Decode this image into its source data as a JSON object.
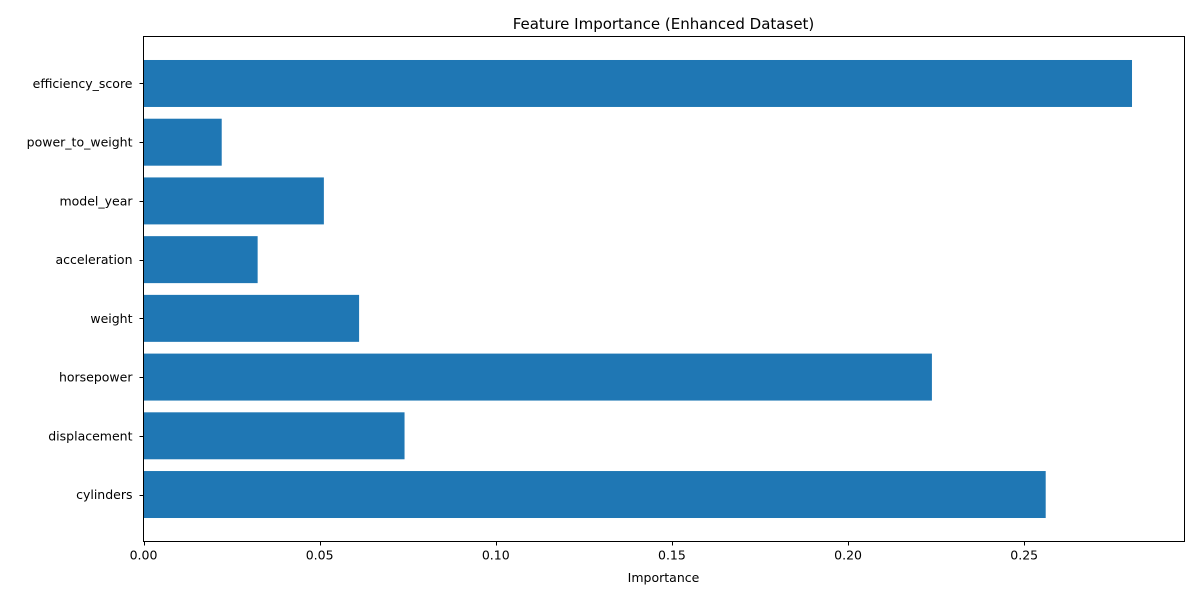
{
  "chart_data": {
    "type": "bar",
    "orientation": "horizontal",
    "title": "Feature Importance (Enhanced Dataset)",
    "xlabel": "Importance",
    "ylabel": "",
    "categories": [
      "cylinders",
      "displacement",
      "horsepower",
      "weight",
      "acceleration",
      "model_year",
      "power_to_weight",
      "efficiency_score"
    ],
    "values": [
      0.2561,
      0.0741,
      0.2238,
      0.0612,
      0.0324,
      0.0512,
      0.0222,
      0.2806
    ],
    "xlim": [
      0,
      0.2955
    ],
    "xticks": [
      0.0,
      0.05,
      0.1,
      0.15,
      0.2,
      0.25
    ],
    "xtick_labels": [
      "0.00",
      "0.05",
      "0.10",
      "0.15",
      "0.20",
      "0.25"
    ],
    "bar_color": "#1f77b4",
    "grid": false,
    "legend": "none"
  }
}
